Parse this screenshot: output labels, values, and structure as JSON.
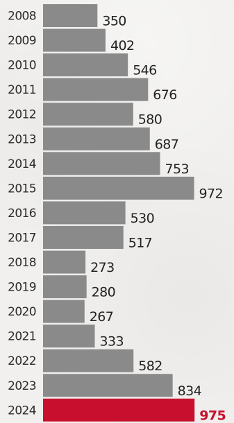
{
  "chart_data": {
    "type": "bar",
    "orientation": "horizontal",
    "categories": [
      "2008",
      "2009",
      "2010",
      "2011",
      "2012",
      "2013",
      "2014",
      "2015",
      "2016",
      "2017",
      "2018",
      "2019",
      "2020",
      "2021",
      "2022",
      "2023",
      "2024"
    ],
    "values": [
      350,
      402,
      546,
      676,
      580,
      687,
      753,
      972,
      530,
      517,
      273,
      280,
      267,
      333,
      582,
      834,
      975
    ],
    "highlight_category": "2024",
    "colors": {
      "bar": "#8a8a8a",
      "highlight_bar": "#c8102e",
      "highlight_label": "#c8102e",
      "label": "#222222",
      "background": "#f1f0ee"
    },
    "grid": false,
    "legend": "none",
    "xlim": [
      0,
      1000
    ]
  }
}
